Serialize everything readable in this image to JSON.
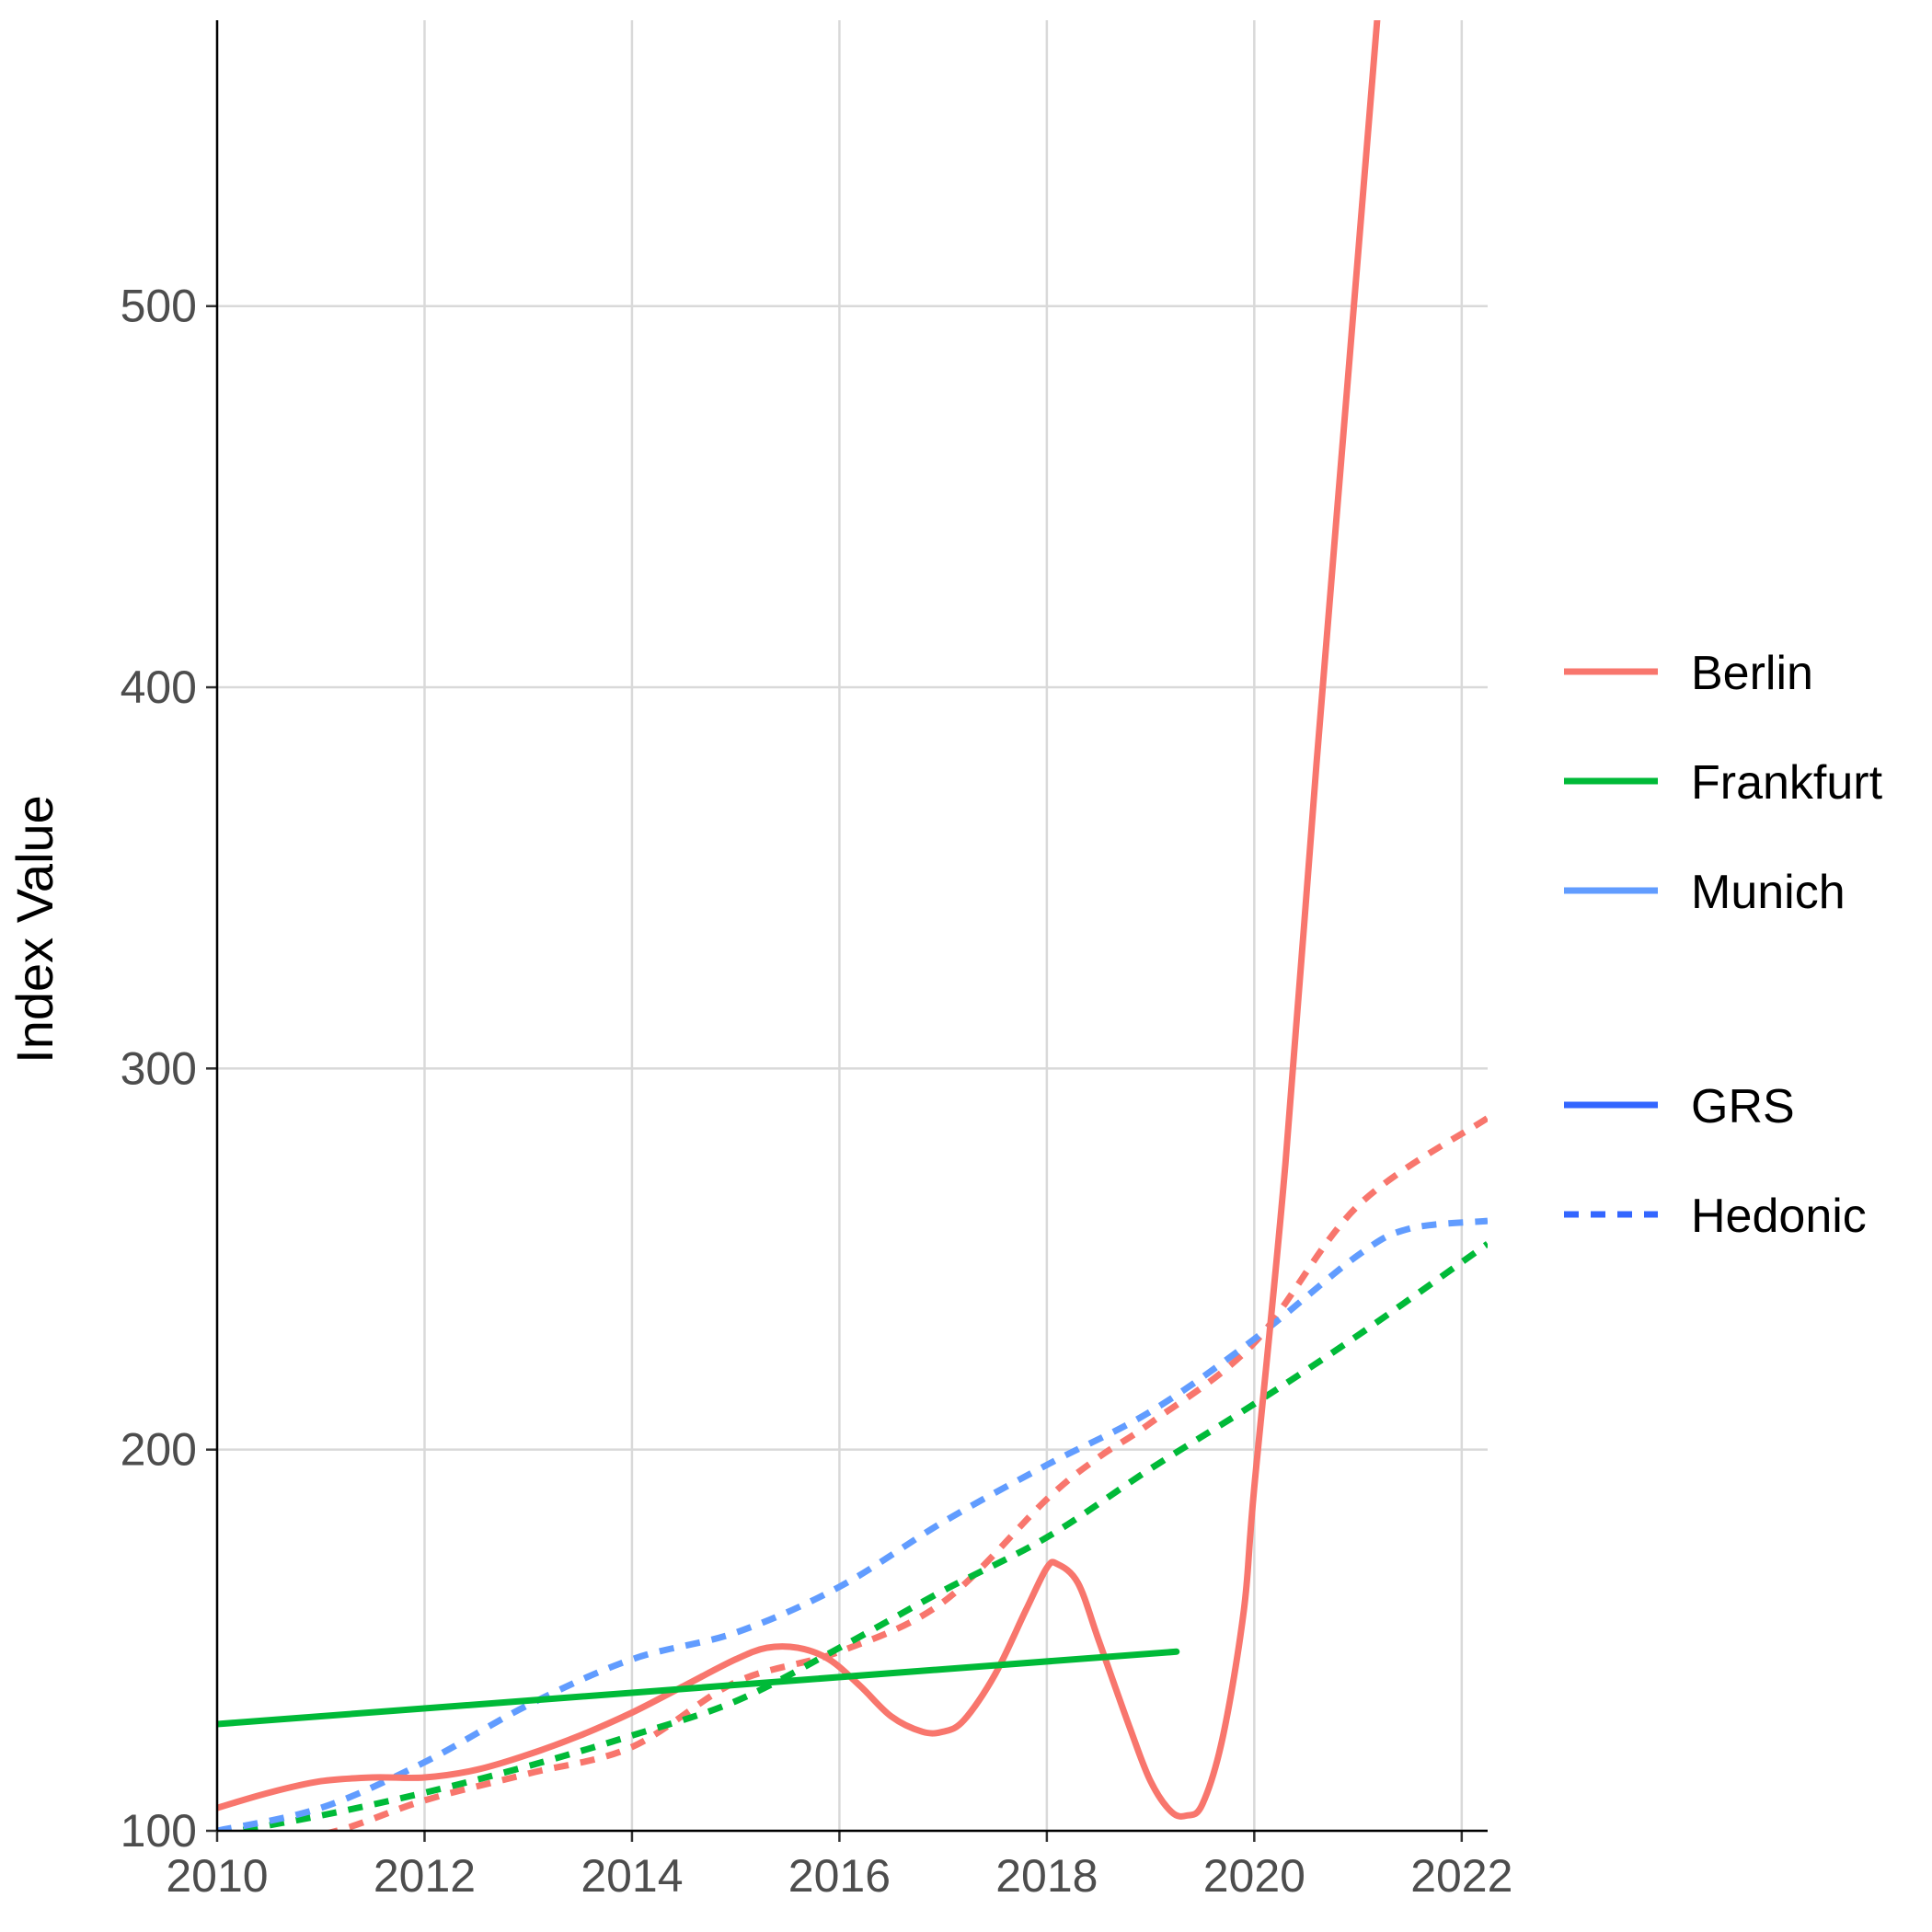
{
  "chart_data": {
    "type": "line",
    "title": "",
    "xlabel": "",
    "ylabel": "Index Value",
    "xlim": [
      2010,
      2022.25
    ],
    "ylim": [
      100,
      575
    ],
    "x_ticks": [
      "2010",
      "2012",
      "2014",
      "2016",
      "2018",
      "2020",
      "2022"
    ],
    "y_ticks": [
      "100",
      "200",
      "300",
      "400",
      "500"
    ],
    "grid": true,
    "legend_position": "right",
    "colors": {
      "Berlin": "#F8766D",
      "Frankfurt": "#00BA38",
      "Munich": "#619CFF",
      "GRS": "#3366FF",
      "Hedonic": "#3366FF"
    },
    "legend": {
      "cities": [
        "Berlin",
        "Frankfurt",
        "Munich"
      ],
      "methods": [
        "GRS",
        "Hedonic"
      ]
    },
    "series": [
      {
        "name": "Berlin",
        "method": "GRS",
        "x": [
          2010.0,
          2010.5,
          2011.0,
          2011.5,
          2012.0,
          2012.5,
          2013.0,
          2013.5,
          2014.0,
          2014.5,
          2015.0,
          2015.3,
          2015.6,
          2015.9,
          2016.2,
          2016.5,
          2016.8,
          2017.0,
          2017.2,
          2017.5,
          2017.8,
          2018.0,
          2018.1,
          2018.3,
          2018.5,
          2018.8,
          2019.0,
          2019.2,
          2019.35,
          2019.5,
          2019.7,
          2019.9,
          2020.0,
          2020.3,
          2020.6,
          2020.9,
          2021.2
        ],
        "y": [
          106,
          110,
          113,
          114,
          114,
          116,
          120,
          125,
          131,
          138,
          145,
          148,
          148,
          145,
          138,
          130,
          126,
          126,
          129,
          141,
          158,
          169,
          170,
          165,
          150,
          127,
          113,
          105,
          104,
          107,
          125,
          158,
          190,
          275,
          380,
          480,
          580
        ]
      },
      {
        "name": "Frankfurt",
        "method": "GRS",
        "x": [
          2010.0,
          2019.25
        ],
        "y": [
          128,
          147
        ]
      },
      {
        "name": "Berlin",
        "method": "Hedonic",
        "x": [
          2010.0,
          2011.0,
          2012.0,
          2013.0,
          2014.0,
          2015.0,
          2016.0,
          2017.0,
          2018.0,
          2018.5,
          2019.0,
          2020.0,
          2021.0,
          2022.25
        ],
        "y": [
          98,
          99,
          108,
          115,
          122,
          139,
          147,
          160,
          187,
          198,
          207,
          228,
          264,
          287
        ]
      },
      {
        "name": "Frankfurt",
        "method": "Hedonic",
        "x": [
          2010.0,
          2011.0,
          2012.0,
          2013.0,
          2014.0,
          2015.0,
          2016.0,
          2017.0,
          2018.0,
          2019.0,
          2020.0,
          2021.0,
          2022.25
        ],
        "y": [
          99,
          104,
          110,
          117,
          125,
          134,
          148,
          163,
          177,
          195,
          212,
          230,
          254
        ]
      },
      {
        "name": "Munich",
        "method": "Hedonic",
        "x": [
          2010.0,
          2011.0,
          2012.0,
          2013.0,
          2014.0,
          2015.0,
          2016.0,
          2017.0,
          2018.0,
          2019.0,
          2020.0,
          2021.0,
          2021.5,
          2022.25
        ],
        "y": [
          100,
          106,
          118,
          133,
          145,
          152,
          164,
          181,
          196,
          210,
          229,
          251,
          258,
          260
        ]
      }
    ]
  }
}
